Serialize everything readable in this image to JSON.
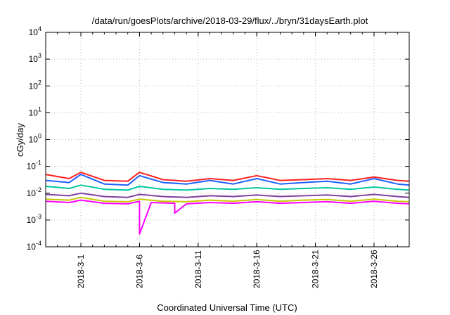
{
  "chart_data": {
    "type": "line",
    "title": "/data/run/goesPlots/archive/2018-03-29/flux/../bryn/31daysEarth.plot",
    "xlabel": "Coordinated Universal Time (UTC)",
    "ylabel": "cGy/day",
    "yscale": "log",
    "ylim": [
      0.0001,
      10000
    ],
    "xlim": [
      "2018-02-26",
      "2018-03-29"
    ],
    "grid": true,
    "x_ticks": [
      "2018-3-1",
      "2018-3-6",
      "2018-3-11",
      "2018-3-16",
      "2018-3-21",
      "2018-3-26"
    ],
    "x_tick_dates": [
      "2018-03-01",
      "2018-03-06",
      "2018-03-11",
      "2018-03-16",
      "2018-03-21",
      "2018-03-26"
    ],
    "y_ticks": [
      {
        "value": 0.0001,
        "base": "10",
        "exp": "-4"
      },
      {
        "value": 0.001,
        "base": "10",
        "exp": "-3"
      },
      {
        "value": 0.01,
        "base": "10",
        "exp": "-2"
      },
      {
        "value": 0.1,
        "base": "10",
        "exp": "-1"
      },
      {
        "value": 1,
        "base": "10",
        "exp": "0"
      },
      {
        "value": 10,
        "base": "10",
        "exp": "1"
      },
      {
        "value": 100,
        "base": "10",
        "exp": "2"
      },
      {
        "value": 1000,
        "base": "10",
        "exp": "3"
      },
      {
        "value": 10000,
        "base": "10",
        "exp": "4"
      }
    ],
    "series": [
      {
        "color": "#ff2020",
        "x": [
          "2018-02-26",
          "2018-02-28",
          "2018-03-01",
          "2018-03-03",
          "2018-03-05",
          "2018-03-06",
          "2018-03-08",
          "2018-03-10",
          "2018-03-12",
          "2018-03-14",
          "2018-03-16",
          "2018-03-18",
          "2018-03-20",
          "2018-03-22",
          "2018-03-24",
          "2018-03-26",
          "2018-03-28",
          "2018-03-29"
        ],
        "values": [
          0.05,
          0.035,
          0.06,
          0.03,
          0.028,
          0.06,
          0.032,
          0.028,
          0.035,
          0.03,
          0.045,
          0.03,
          0.032,
          0.035,
          0.03,
          0.04,
          0.03,
          0.028
        ]
      },
      {
        "color": "#2060ff",
        "x": [
          "2018-02-26",
          "2018-02-28",
          "2018-03-01",
          "2018-03-03",
          "2018-03-05",
          "2018-03-06",
          "2018-03-08",
          "2018-03-10",
          "2018-03-12",
          "2018-03-14",
          "2018-03-16",
          "2018-03-18",
          "2018-03-20",
          "2018-03-22",
          "2018-03-24",
          "2018-03-26",
          "2018-03-28",
          "2018-03-29"
        ],
        "values": [
          0.03,
          0.025,
          0.05,
          0.022,
          0.02,
          0.045,
          0.025,
          0.022,
          0.03,
          0.022,
          0.035,
          0.022,
          0.025,
          0.028,
          0.022,
          0.035,
          0.022,
          0.02
        ]
      },
      {
        "color": "#00c8a0",
        "x": [
          "2018-02-26",
          "2018-02-28",
          "2018-03-01",
          "2018-03-03",
          "2018-03-05",
          "2018-03-06",
          "2018-03-08",
          "2018-03-10",
          "2018-03-12",
          "2018-03-14",
          "2018-03-16",
          "2018-03-18",
          "2018-03-20",
          "2018-03-22",
          "2018-03-24",
          "2018-03-26",
          "2018-03-28",
          "2018-03-29"
        ],
        "values": [
          0.018,
          0.015,
          0.02,
          0.014,
          0.013,
          0.018,
          0.014,
          0.013,
          0.015,
          0.014,
          0.016,
          0.014,
          0.015,
          0.016,
          0.014,
          0.017,
          0.014,
          0.013
        ]
      },
      {
        "color": "#8040a0",
        "x": [
          "2018-02-26",
          "2018-02-28",
          "2018-03-01",
          "2018-03-03",
          "2018-03-05",
          "2018-03-06",
          "2018-03-08",
          "2018-03-10",
          "2018-03-12",
          "2018-03-14",
          "2018-03-16",
          "2018-03-18",
          "2018-03-20",
          "2018-03-22",
          "2018-03-24",
          "2018-03-26",
          "2018-03-28",
          "2018-03-29"
        ],
        "values": [
          0.009,
          0.008,
          0.01,
          0.0075,
          0.007,
          0.009,
          0.0075,
          0.007,
          0.008,
          0.0075,
          0.0085,
          0.0075,
          0.008,
          0.0085,
          0.0075,
          0.009,
          0.0075,
          0.007
        ]
      },
      {
        "color": "#c8c800",
        "x": [
          "2018-02-26",
          "2018-02-28",
          "2018-03-01",
          "2018-03-03",
          "2018-03-05",
          "2018-03-06",
          "2018-03-08",
          "2018-03-10",
          "2018-03-12",
          "2018-03-14",
          "2018-03-16",
          "2018-03-18",
          "2018-03-20",
          "2018-03-22",
          "2018-03-24",
          "2018-03-26",
          "2018-03-28",
          "2018-03-29"
        ],
        "values": [
          0.006,
          0.0055,
          0.007,
          0.005,
          0.0048,
          0.006,
          0.005,
          0.0048,
          0.0055,
          0.005,
          0.0058,
          0.005,
          0.0055,
          0.0058,
          0.005,
          0.006,
          0.005,
          0.0048
        ]
      },
      {
        "color": "#ff00ff",
        "x": [
          "2018-02-26",
          "2018-02-28",
          "2018-03-01",
          "2018-03-03",
          "2018-03-05",
          "2018-03-06",
          "2018-03-06",
          "2018-03-07",
          "2018-03-09",
          "2018-03-09",
          "2018-03-10",
          "2018-03-12",
          "2018-03-14",
          "2018-03-16",
          "2018-03-18",
          "2018-03-20",
          "2018-03-22",
          "2018-03-24",
          "2018-03-26",
          "2018-03-28",
          "2018-03-29"
        ],
        "values": [
          0.005,
          0.0045,
          0.0055,
          0.0042,
          0.004,
          0.005,
          0.0003,
          0.0045,
          0.0042,
          0.0018,
          0.004,
          0.0045,
          0.0042,
          0.0048,
          0.0042,
          0.0045,
          0.0048,
          0.0042,
          0.005,
          0.0042,
          0.004
        ]
      }
    ]
  }
}
